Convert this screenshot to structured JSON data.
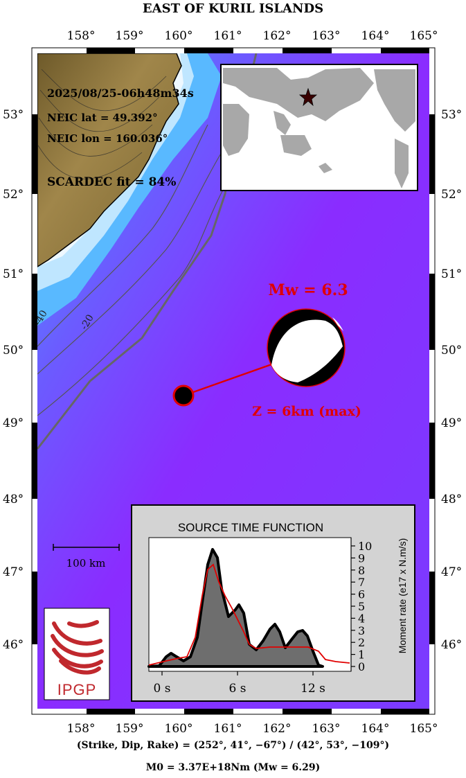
{
  "title": "EAST OF KURIL ISLANDS",
  "lon_ticks": [
    "158°",
    "159°",
    "160°",
    "161°",
    "162°",
    "163°",
    "164°",
    "165°"
  ],
  "lat_ticks": [
    "53°",
    "52°",
    "51°",
    "50°",
    "49°",
    "48°",
    "47°",
    "46°"
  ],
  "event": {
    "datetime": "2025/08/25-06h48m34s",
    "lat_label": "NEIC lat = 49.392°",
    "lon_label": "NEIC lon = 160.036°",
    "fit_label": "SCARDEC fit = 84%",
    "mw_label": "Mw = 6.3",
    "depth_label": "Z =   6km (max)"
  },
  "contours": [
    "-40",
    "-20"
  ],
  "scale_label": "100 km",
  "stf": {
    "title": "SOURCE TIME FUNCTION",
    "ylabel": "Moment rate (e17 x N.m/s)",
    "x_ticks": [
      "0 s",
      "6 s",
      "12 s"
    ],
    "y_ticks": [
      "0",
      "1",
      "2",
      "3",
      "4",
      "5",
      "6",
      "7",
      "8",
      "9",
      "10"
    ]
  },
  "logo_text": "IPGP",
  "mechanism_line": "(Strike, Dip, Rake) = (252°, 41°, −67°) / (42°, 53°, −109°)",
  "moment_line": "M0 = 3.37E+18Nm  (Mw = 6.29)",
  "colors": {
    "accent": "#e00000",
    "logo": "#c0282d",
    "ocean": "#8a2cff"
  }
}
